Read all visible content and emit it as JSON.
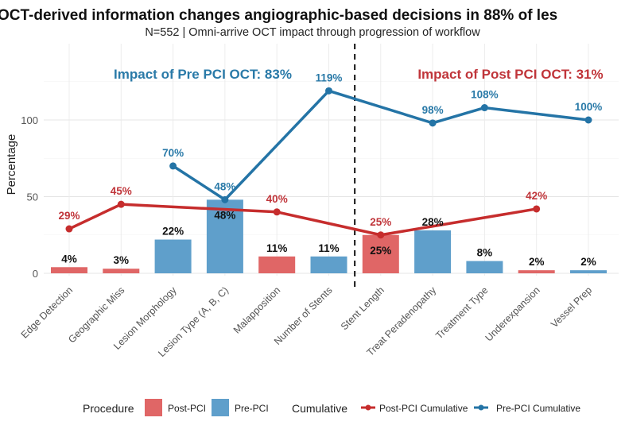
{
  "chart_data": {
    "type": "bar",
    "title": "OCT-derived information changes angiographic-based decisions in 88% of les",
    "subtitle": "N=552 | Omni-arrive OCT impact through progression of workflow",
    "xlabel": "",
    "ylabel": "Percentage",
    "ylim": [
      0,
      140
    ],
    "yticks": [
      0,
      50,
      100
    ],
    "grid": true,
    "categories": [
      "Edge Detection",
      "Geographic Miss",
      "Lesion Morphology",
      "Lesion Type (A, B, C)",
      "Malapposition",
      "Number of Stents",
      "Stent Length",
      "Treat Peradenopathy",
      "Treatment Type",
      "Underexpansion",
      "Vessel Prep"
    ],
    "bars": {
      "procedure": [
        "Post-PCI",
        "Post-PCI",
        "Pre-PCI",
        "Pre-PCI",
        "Post-PCI",
        "Pre-PCI",
        "Post-PCI",
        "Pre-PCI",
        "Pre-PCI",
        "Post-PCI",
        "Pre-PCI"
      ],
      "values": [
        4,
        3,
        22,
        48,
        11,
        11,
        25,
        28,
        8,
        2,
        2
      ],
      "labels": [
        "4%",
        "3%",
        "22%",
        "48%",
        "11%",
        "11%",
        "25%",
        "28%",
        "8%",
        "2%",
        "2%"
      ]
    },
    "series": [
      {
        "name": "Post-PCI Cumulative",
        "color": "#c62d2d",
        "points": [
          {
            "category": "Edge Detection",
            "value": 29,
            "label": "29%"
          },
          {
            "category": "Geographic Miss",
            "value": 45,
            "label": "45%"
          },
          {
            "category": "Malapposition",
            "value": 40,
            "label": "40%"
          },
          {
            "category": "Stent Length",
            "value": 25,
            "label": "25%"
          },
          {
            "category": "Underexpansion",
            "value": 42,
            "label": "42%"
          }
        ]
      },
      {
        "name": "Pre-PCI Cumulative",
        "color": "#2474a6",
        "points": [
          {
            "category": "Lesion Morphology",
            "value": 70,
            "label": "70%"
          },
          {
            "category": "Lesion Type (A, B, C)",
            "value": 48,
            "label": "48%"
          },
          {
            "category": "Number of Stents",
            "value": 119,
            "label": "119%"
          },
          {
            "category": "Treat Peradenopathy",
            "value": 98,
            "label": "98%"
          },
          {
            "category": "Treatment Type",
            "value": 108,
            "label": "108%"
          },
          {
            "category": "Vessel Prep",
            "value": 100,
            "label": "100%"
          }
        ]
      }
    ],
    "annotations": {
      "pre": "Impact of Pre PCI OCT: 83%",
      "post": "Impact of Post PCI OCT: 31%"
    },
    "divider_after_category": "Number of Stents",
    "colors": {
      "Post-PCI": "#e06666",
      "Pre-PCI": "#5f9fcb"
    },
    "legend": {
      "position": "bottom",
      "procedure_title": "Procedure",
      "procedure_items": [
        "Post-PCI",
        "Pre-PCI"
      ],
      "cumulative_title": "Cumulative",
      "cumulative_items": [
        "Post-PCI Cumulative",
        "Pre-PCI Cumulative"
      ]
    }
  }
}
